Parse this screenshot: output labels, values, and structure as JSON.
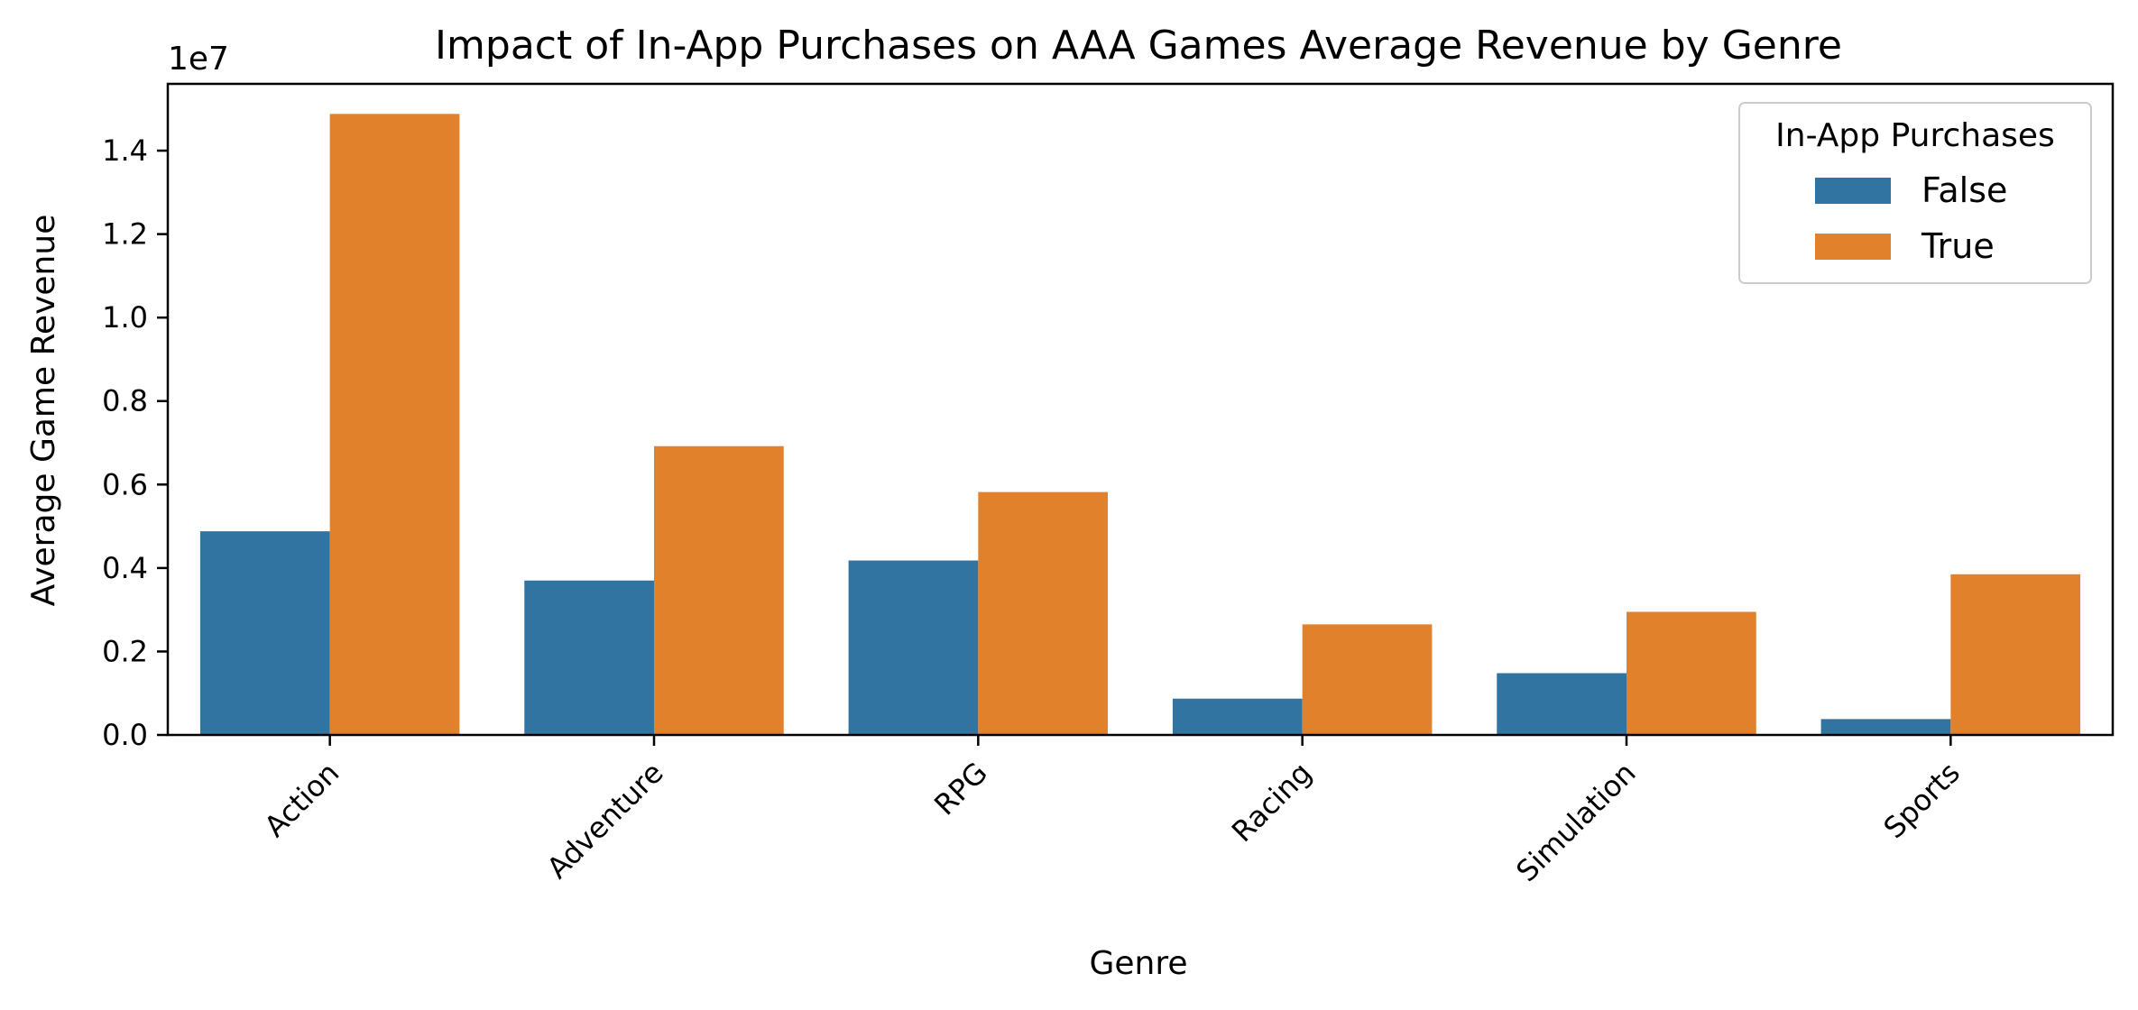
{
  "chart_data": {
    "type": "bar",
    "title": "Impact of In-App Purchases on AAA Games Average Revenue by Genre",
    "xlabel": "Genre",
    "ylabel": "Average Game Revenue",
    "y_offset_label": "1e7",
    "categories": [
      "Action",
      "Adventure",
      "RPG",
      "Racing",
      "Simulation",
      "Sports"
    ],
    "series": [
      {
        "name": "False",
        "color": "#3274a1",
        "values": [
          4880000,
          3700000,
          4180000,
          870000,
          1480000,
          380000
        ]
      },
      {
        "name": "True",
        "color": "#e1812c",
        "values": [
          14880000,
          6920000,
          5820000,
          2650000,
          2950000,
          3850000
        ]
      }
    ],
    "ylim": [
      0,
      15600000
    ],
    "yticks": [
      0,
      2000000,
      4000000,
      6000000,
      8000000,
      10000000,
      12000000,
      14000000
    ],
    "ytick_labels": [
      "0.0",
      "0.2",
      "0.4",
      "0.6",
      "0.8",
      "1.0",
      "1.2",
      "1.4"
    ],
    "legend": {
      "title": "In-App Purchases",
      "placement": "top-right",
      "entries": [
        "False",
        "True"
      ]
    },
    "grid": false
  }
}
